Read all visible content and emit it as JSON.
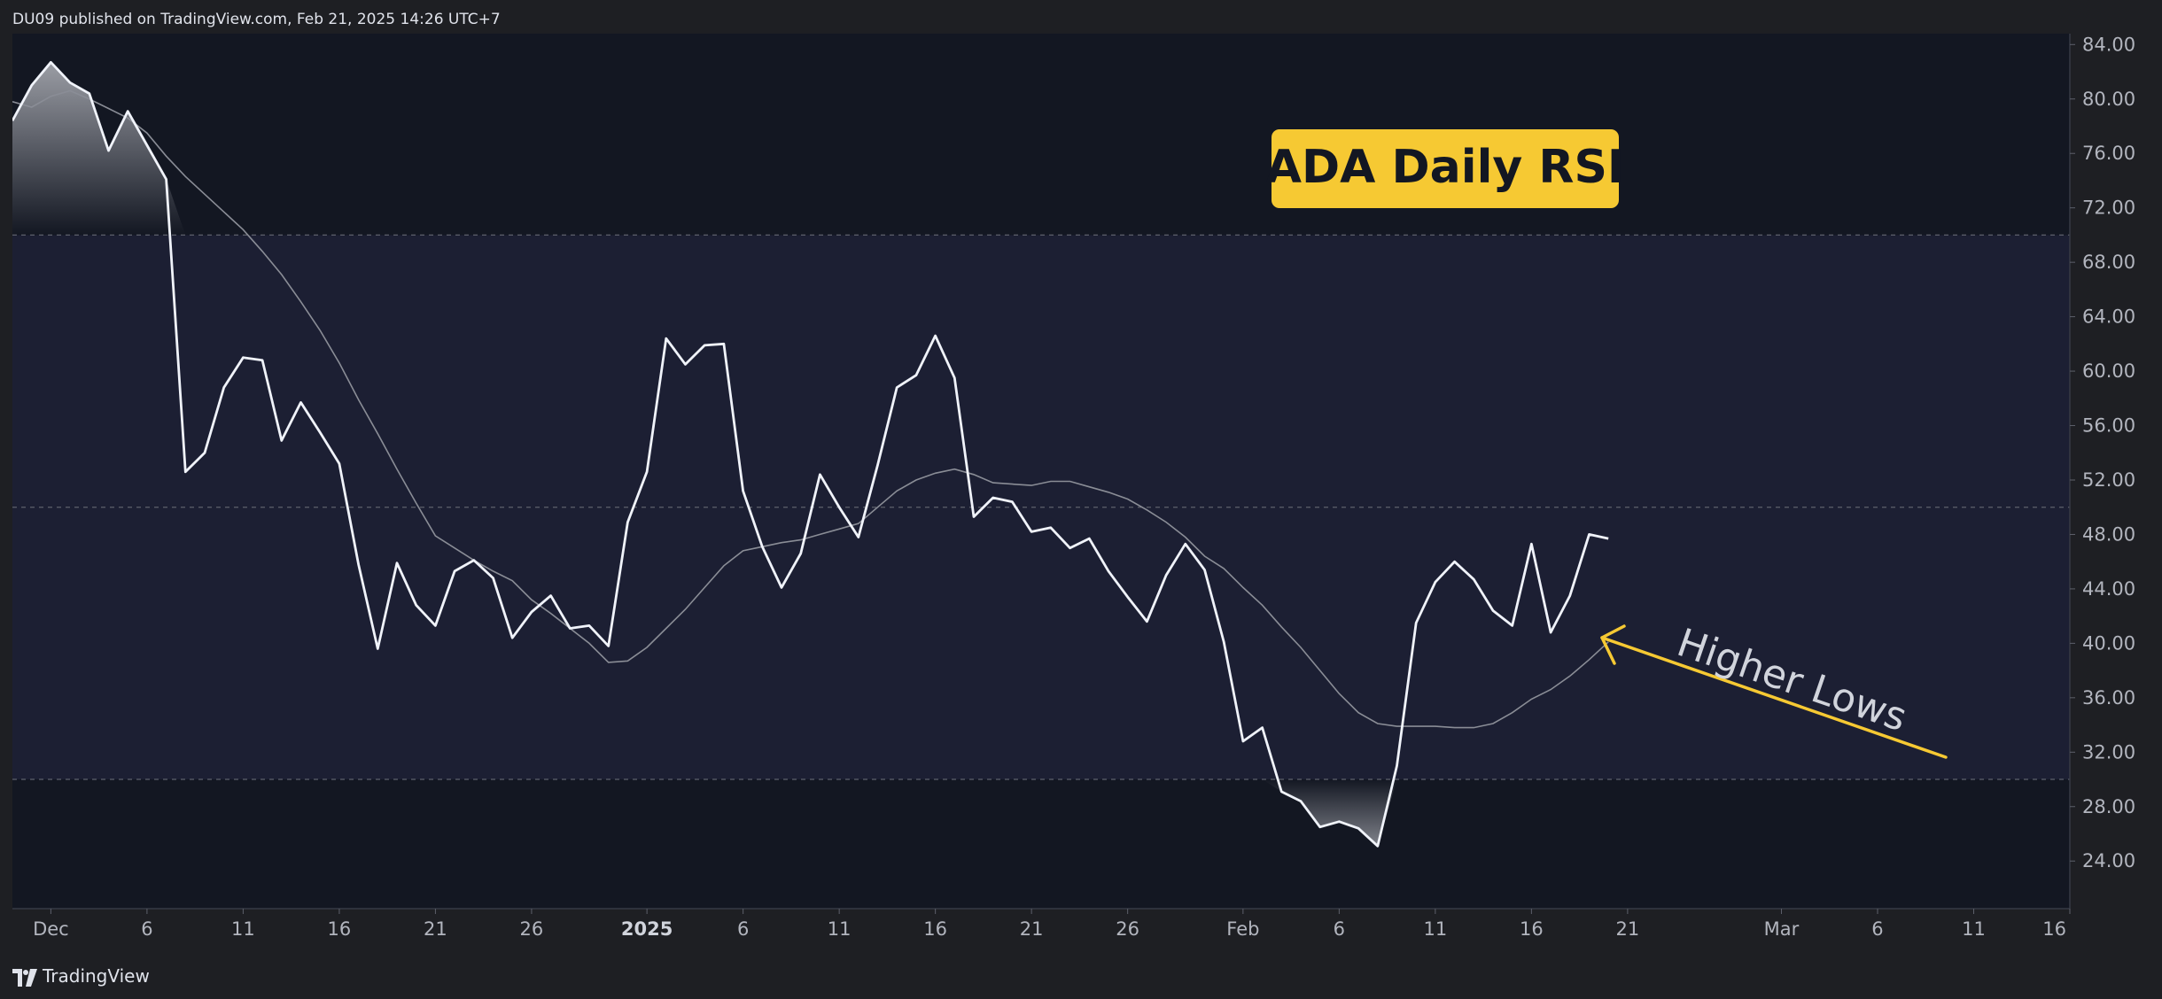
{
  "header": {
    "publish_text": "DU09 published on TradingView.com, Feb 21, 2025 14:26 UTC+7"
  },
  "footer": {
    "brand": "TradingView",
    "logo_icon": "tradingview-logo-icon"
  },
  "colors": {
    "background": "#131722",
    "band": "#1c1f33",
    "rsi_line": "#f0f3fa",
    "ma_line": "#8a8d96",
    "gridline": "#5d606b",
    "label_box": "#f6c933",
    "label_text": "#131722",
    "arrow": "#f6c933",
    "annotation_text": "#d1d4dc"
  },
  "chart_data": {
    "type": "line",
    "title": "ADA Daily RSI",
    "y_range": [
      20.5,
      84.8
    ],
    "x_range": [
      "2024-11-29",
      "2025-03-16"
    ],
    "y_ticks": [
      "84.00",
      "80.00",
      "76.00",
      "72.00",
      "68.00",
      "64.00",
      "60.00",
      "56.00",
      "52.00",
      "48.00",
      "44.00",
      "40.00",
      "36.00",
      "32.00",
      "28.00",
      "24.00"
    ],
    "x_ticks": [
      {
        "label": "Dec",
        "date": "2024-12-01",
        "bold": false
      },
      {
        "label": "6",
        "date": "2024-12-06",
        "bold": false
      },
      {
        "label": "11",
        "date": "2024-12-11",
        "bold": false
      },
      {
        "label": "16",
        "date": "2024-12-16",
        "bold": false
      },
      {
        "label": "21",
        "date": "2024-12-21",
        "bold": false
      },
      {
        "label": "26",
        "date": "2024-12-26",
        "bold": false
      },
      {
        "label": "2025",
        "date": "2025-01-01",
        "bold": true
      },
      {
        "label": "6",
        "date": "2025-01-06",
        "bold": false
      },
      {
        "label": "11",
        "date": "2025-01-11",
        "bold": false
      },
      {
        "label": "16",
        "date": "2025-01-16",
        "bold": false
      },
      {
        "label": "21",
        "date": "2025-01-21",
        "bold": false
      },
      {
        "label": "26",
        "date": "2025-01-26",
        "bold": false
      },
      {
        "label": "Feb",
        "date": "2025-02-01",
        "bold": false
      },
      {
        "label": "6",
        "date": "2025-02-06",
        "bold": false
      },
      {
        "label": "11",
        "date": "2025-02-11",
        "bold": false
      },
      {
        "label": "16",
        "date": "2025-02-16",
        "bold": false
      },
      {
        "label": "21",
        "date": "2025-02-21",
        "bold": false
      },
      {
        "label": "Mar",
        "date": "2025-03-01",
        "bold": false
      },
      {
        "label": "6",
        "date": "2025-03-06",
        "bold": false
      },
      {
        "label": "11",
        "date": "2025-03-11",
        "bold": false
      },
      {
        "label": "16",
        "date": "2025-03-16",
        "bold": false
      }
    ],
    "levels": {
      "overbought": 70,
      "middle": 50,
      "oversold": 30
    },
    "start_date": "2024-11-29",
    "series": [
      {
        "role": "rsi",
        "values": [
          78.4,
          81,
          82.7,
          81.2,
          80.4,
          76.2,
          79.1,
          76.6,
          74.1,
          52.6,
          54,
          58.8,
          61,
          60.8,
          54.9,
          57.7,
          55.5,
          53.2,
          45.8,
          39.6,
          45.9,
          42.8,
          41.3,
          45.3,
          46.1,
          44.8,
          40.4,
          42.3,
          43.5,
          41.1,
          41.3,
          39.8,
          48.9,
          52.6,
          62.4,
          60.5,
          61.9,
          62,
          51.2,
          47.1,
          44.1,
          46.6,
          52.4,
          50,
          47.8,
          53.1,
          58.8,
          59.7,
          62.6,
          59.5,
          49.3,
          50.7,
          50.4,
          48.2,
          48.5,
          47,
          47.7,
          45.3,
          43.4,
          41.6,
          45,
          47.3,
          45.4,
          40.1,
          32.8,
          33.8,
          29.1,
          28.4,
          26.5,
          26.9,
          26.4,
          25.1,
          31,
          41.5,
          44.5,
          46,
          44.7,
          42.4,
          41.3,
          47.3,
          40.8,
          43.5,
          48,
          47.7
        ]
      },
      {
        "role": "moving average",
        "values": [
          79.8,
          79.4,
          80.2,
          80.6,
          80,
          79.3,
          78.6,
          77.5,
          75.8,
          74.3,
          73,
          71.7,
          70.4,
          68.8,
          67.1,
          65.1,
          63,
          60.6,
          57.9,
          55.4,
          52.8,
          50.3,
          47.9,
          47,
          46.1,
          45.3,
          44.6,
          43.2,
          42.2,
          41.1,
          40,
          38.6,
          38.7,
          39.7,
          41.1,
          42.5,
          44.1,
          45.7,
          46.8,
          47.1,
          47.4,
          47.6,
          48,
          48.4,
          48.8,
          50,
          51.2,
          52,
          52.5,
          52.8,
          52.4,
          51.8,
          51.7,
          51.6,
          51.9,
          51.9,
          51.5,
          51.1,
          50.6,
          49.8,
          48.9,
          47.8,
          46.4,
          45.5,
          44.1,
          42.8,
          41.2,
          39.7,
          38,
          36.3,
          34.9,
          34.1,
          33.9,
          33.9,
          33.9,
          33.8,
          33.8,
          34.1,
          34.9,
          35.9,
          36.6,
          37.6,
          38.8,
          40.1
        ]
      }
    ],
    "annotations": [
      {
        "text": "Higher Lows"
      }
    ]
  }
}
